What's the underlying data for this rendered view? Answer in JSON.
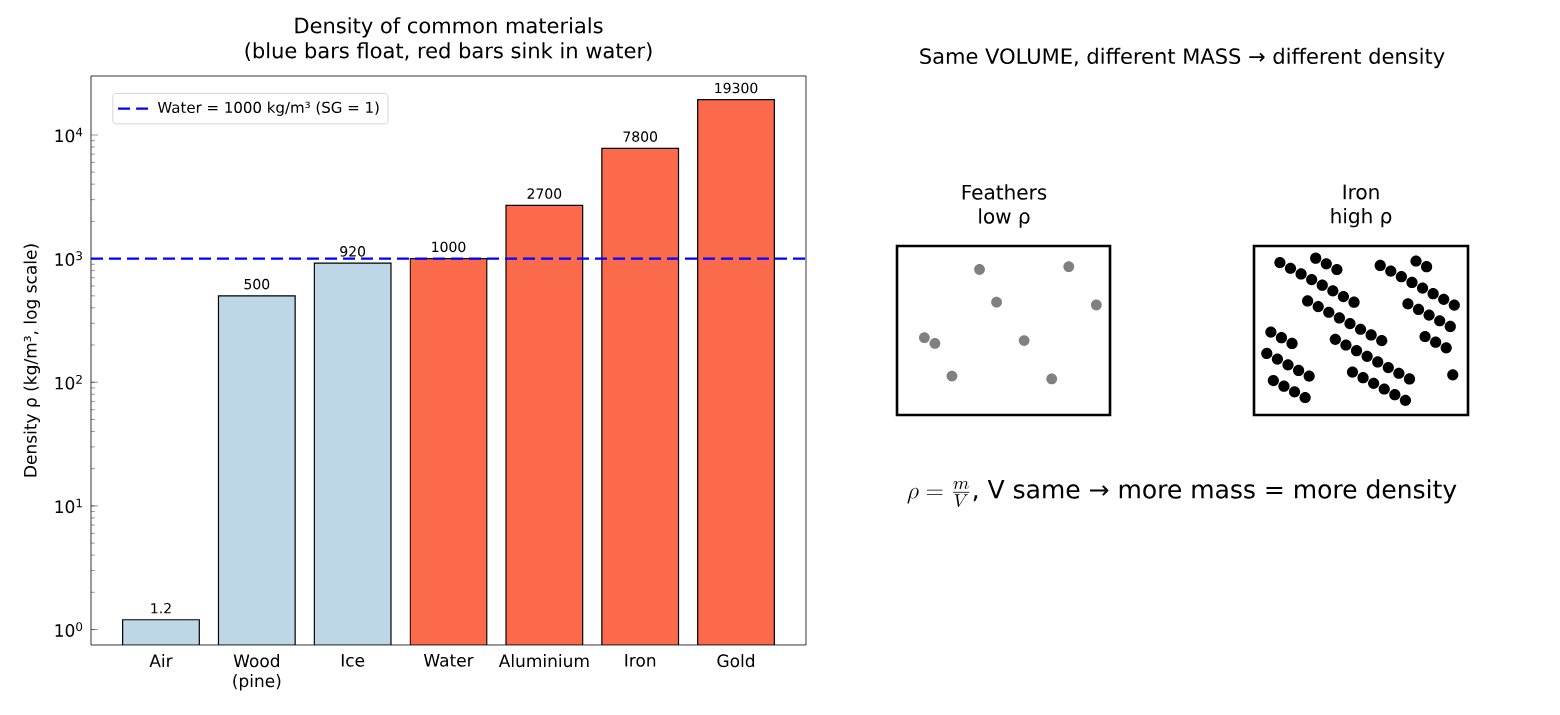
{
  "chart_data": [
    {
      "type": "bar",
      "title": "Density of common materials",
      "subtitle": "(blue bars float, red bars sink in water)",
      "ylabel": "Density  ρ  (kg/m³, log scale)",
      "categories": [
        "Air",
        "Wood (pine)",
        "Ice",
        "Water",
        "Aluminium",
        "Iron",
        "Gold"
      ],
      "values": [
        1.2,
        500,
        920,
        1000,
        2700,
        7800,
        19300
      ],
      "colors": [
        "#bdd7e7",
        "#bdd7e7",
        "#bdd7e7",
        "#fb6a4a",
        "#fb6a4a",
        "#fb6a4a",
        "#fb6a4a"
      ],
      "data_labels": true,
      "log": true,
      "ylim": [
        0.75,
        30000
      ],
      "yticks": [
        {
          "value": 1,
          "label": "10$^{0}$"
        },
        {
          "value": 10,
          "label": "10$^{1}$"
        },
        {
          "value": 100,
          "label": "10$^{2}$"
        },
        {
          "value": 1000,
          "label": "10$^{3}$"
        },
        {
          "value": 10000,
          "label": "10$^{4}$"
        }
      ],
      "ref_lines": [
        {
          "axis": "y",
          "value": 1000,
          "label": "Water = 1000 kg/m³ (SG = 1)",
          "color": "#0000ff",
          "line_style": "dashed"
        }
      ],
      "legend": "top left"
    },
    {
      "type": "other",
      "title": "Same VOLUME, different MASS → different density",
      "annotations": [
        "Feathers",
        "low ρ",
        "Iron",
        "high ρ",
        "\\rho = \\frac{m}{V}",
        ",  V same  →  more mass = more density"
      ]
    }
  ]
}
